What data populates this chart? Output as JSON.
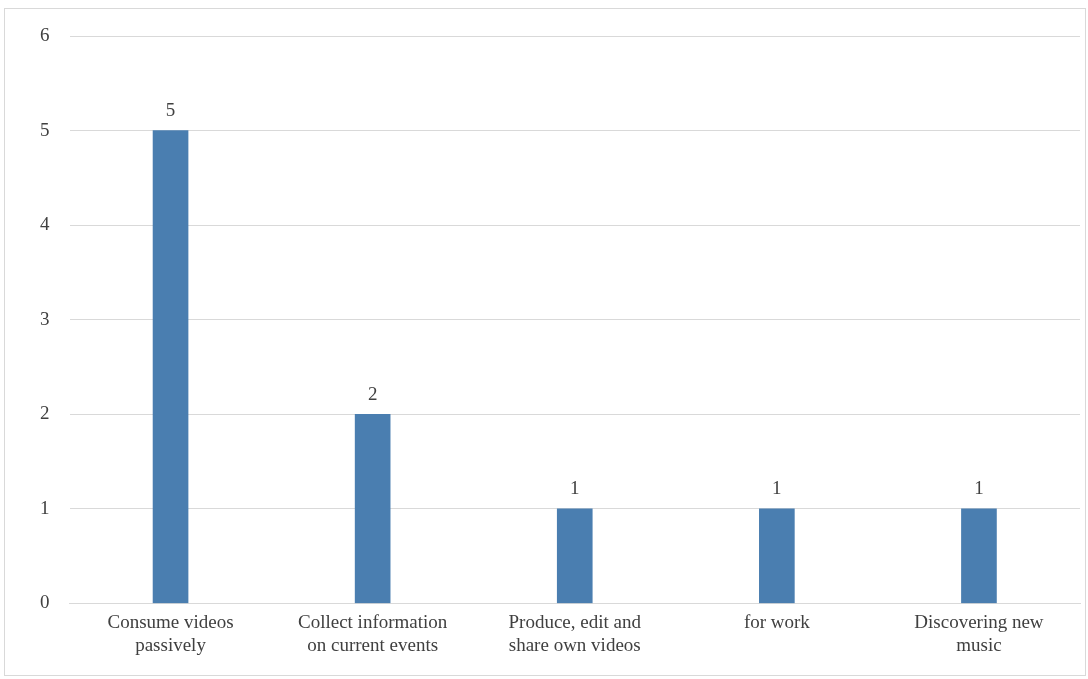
{
  "chart_data": {
    "type": "bar",
    "categories": [
      "Consume videos passively",
      "Collect information on current events",
      "Produce, edit and share own videos",
      "for work",
      "Discovering new music"
    ],
    "values": [
      5,
      2,
      1,
      1,
      1
    ],
    "color": "#4a7eb0",
    "ylim": [
      0,
      6
    ],
    "yticks": [
      0,
      1,
      2,
      3,
      4,
      5,
      6
    ],
    "grid": "y",
    "data_labels": true,
    "legend": false
  }
}
